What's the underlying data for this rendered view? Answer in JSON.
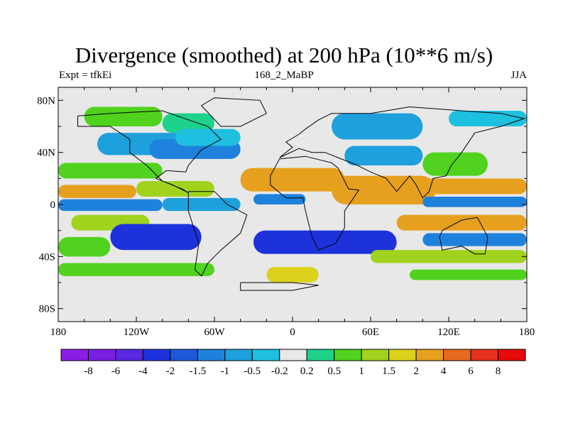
{
  "chart_data": {
    "type": "heatmap",
    "title": "Divergence (smoothed) at 200 hPa (10**6 m/s)",
    "subtitle_left": "Expt = tfkEi",
    "subtitle_center": "168_2_MaBP",
    "subtitle_right": "JJA",
    "x_ticks": [
      {
        "value": -180,
        "label": "180"
      },
      {
        "value": -120,
        "label": "120W"
      },
      {
        "value": -60,
        "label": "60W"
      },
      {
        "value": 0,
        "label": "0"
      },
      {
        "value": 60,
        "label": "60E"
      },
      {
        "value": 120,
        "label": "120E"
      },
      {
        "value": 180,
        "label": "180"
      }
    ],
    "y_ticks": [
      {
        "value": 80,
        "label": "80N"
      },
      {
        "value": 40,
        "label": "40N"
      },
      {
        "value": 0,
        "label": "0"
      },
      {
        "value": -40,
        "label": "40S"
      },
      {
        "value": -80,
        "label": "80S"
      }
    ],
    "xlim": [
      -180,
      180
    ],
    "ylim": [
      -90,
      90
    ],
    "colorbar": {
      "labels": [
        "-8",
        "-6",
        "-4",
        "-2",
        "-1.5",
        "-1",
        "-0.5",
        "-0.2",
        "0.2",
        "0.5",
        "1",
        "1.5",
        "2",
        "4",
        "6",
        "8"
      ],
      "colors": [
        "#8a1ee6",
        "#7a1ee0",
        "#5a28e0",
        "#1e32dc",
        "#1e5ad8",
        "#1e82dc",
        "#1ea0dc",
        "#1ec0e0",
        "#e8e8e8",
        "#1ed28c",
        "#50d21e",
        "#a0d21e",
        "#dcd21e",
        "#e6a01e",
        "#e66a1e",
        "#e6321e",
        "#e60a0a"
      ]
    },
    "regions": [
      {
        "lon0": -180,
        "lon1": 180,
        "lat0": -90,
        "lat1": 90,
        "value": 0.0
      },
      {
        "lon0": -160,
        "lon1": -100,
        "lat0": 60,
        "lat1": 75,
        "value": 0.7
      },
      {
        "lon0": -100,
        "lon1": -60,
        "lat0": 55,
        "lat1": 70,
        "value": 0.3
      },
      {
        "lon0": -150,
        "lon1": -80,
        "lat0": 38,
        "lat1": 55,
        "value": -0.6
      },
      {
        "lon0": -110,
        "lon1": -40,
        "lat0": 35,
        "lat1": 50,
        "value": -1.2
      },
      {
        "lon0": -90,
        "lon1": -40,
        "lat0": 45,
        "lat1": 58,
        "value": -0.4
      },
      {
        "lon0": -180,
        "lon1": -100,
        "lat0": 20,
        "lat1": 32,
        "value": 0.7
      },
      {
        "lon0": -180,
        "lon1": -120,
        "lat0": 5,
        "lat1": 15,
        "value": 2.5
      },
      {
        "lon0": -120,
        "lon1": -60,
        "lat0": 6,
        "lat1": 18,
        "value": 1.2
      },
      {
        "lon0": -180,
        "lon1": -100,
        "lat0": -5,
        "lat1": 4,
        "value": -1.5
      },
      {
        "lon0": -100,
        "lon1": -40,
        "lat0": -5,
        "lat1": 5,
        "value": -0.8
      },
      {
        "lon0": -170,
        "lon1": -110,
        "lat0": -20,
        "lat1": -8,
        "value": 1.0
      },
      {
        "lon0": -140,
        "lon1": -70,
        "lat0": -35,
        "lat1": -15,
        "value": -2.5
      },
      {
        "lon0": -180,
        "lon1": -140,
        "lat0": -40,
        "lat1": -25,
        "value": 0.6
      },
      {
        "lon0": -180,
        "lon1": -60,
        "lat0": -55,
        "lat1": -45,
        "value": 0.7
      },
      {
        "lon0": -20,
        "lon1": 20,
        "lat0": -60,
        "lat1": -48,
        "value": 1.6
      },
      {
        "lon0": -40,
        "lon1": 40,
        "lat0": 10,
        "lat1": 28,
        "value": 2.5
      },
      {
        "lon0": -30,
        "lon1": 10,
        "lat0": 0,
        "lat1": 8,
        "value": -1.5
      },
      {
        "lon0": -30,
        "lon1": 80,
        "lat0": -38,
        "lat1": -20,
        "value": -3.0
      },
      {
        "lon0": 40,
        "lon1": 100,
        "lat0": 30,
        "lat1": 45,
        "value": -1.0
      },
      {
        "lon0": 30,
        "lon1": 100,
        "lat0": 50,
        "lat1": 70,
        "value": -0.6
      },
      {
        "lon0": 30,
        "lon1": 110,
        "lat0": 0,
        "lat1": 22,
        "value": 2.5
      },
      {
        "lon0": 100,
        "lon1": 150,
        "lat0": 22,
        "lat1": 40,
        "value": 0.7
      },
      {
        "lon0": 100,
        "lon1": 180,
        "lat0": 8,
        "lat1": 20,
        "value": 2.5
      },
      {
        "lon0": 100,
        "lon1": 180,
        "lat0": -2,
        "lat1": 6,
        "value": -1.5
      },
      {
        "lon0": 80,
        "lon1": 180,
        "lat0": -20,
        "lat1": -8,
        "value": 2.5
      },
      {
        "lon0": 100,
        "lon1": 180,
        "lat0": -32,
        "lat1": -22,
        "value": -1.2
      },
      {
        "lon0": 60,
        "lon1": 180,
        "lat0": -45,
        "lat1": -35,
        "value": 1.0
      },
      {
        "lon0": 90,
        "lon1": 180,
        "lat0": -58,
        "lat1": -50,
        "value": 0.6
      },
      {
        "lon0": 120,
        "lon1": 180,
        "lat0": 60,
        "lat1": 72,
        "value": -0.4
      }
    ]
  },
  "colors": {
    "background": "#ffffff",
    "coastline": "#000000"
  }
}
